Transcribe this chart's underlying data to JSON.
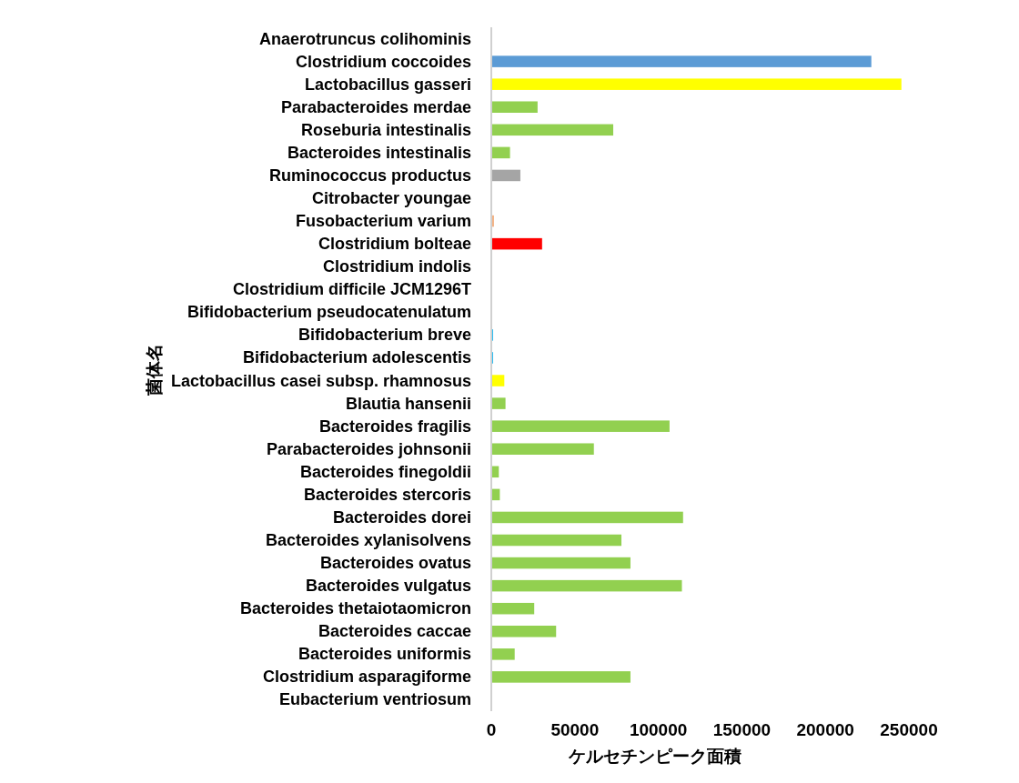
{
  "chart_data": {
    "type": "bar",
    "orientation": "horizontal",
    "xlabel": "ケルセチンピーク面積",
    "ylabel": "菌体名",
    "categories": [
      "Anaerotruncus colihominis",
      "Clostridium coccoides",
      "Lactobacillus gasseri",
      "Parabacteroides merdae",
      "Roseburia intestinalis",
      "Bacteroides intestinalis",
      "Ruminococcus productus",
      "Citrobacter youngae",
      "Fusobacterium varium",
      "Clostridium bolteae",
      "Clostridium indolis",
      "Clostridium difficile JCM1296T",
      "Bifidobacterium pseudocatenulatum",
      "Bifidobacterium breve",
      "Bifidobacterium adolescentis",
      "Lactobacillus casei subsp. rhamnosus",
      "Blautia hansenii",
      "Bacteroides fragilis",
      "Parabacteroides johnsonii",
      "Bacteroides finegoldii",
      "Bacteroides stercoris",
      "Bacteroides dorei",
      "Bacteroides xylanisolvens",
      "Bacteroides ovatus",
      "Bacteroides vulgatus",
      "Bacteroides thetaiotaomicron",
      "Bacteroides caccae",
      "Bacteroides uniformis",
      "Clostridium asparagiforme",
      "Eubacterium ventriosum"
    ],
    "values": [
      0,
      227500,
      245500,
      27700,
      73000,
      11200,
      17400,
      0,
      1600,
      30400,
      0,
      0,
      0,
      1000,
      1000,
      7800,
      8500,
      106700,
      61400,
      4500,
      5100,
      114800,
      77900,
      83300,
      114100,
      25700,
      38800,
      14000,
      83300,
      0
    ],
    "colors": [
      "#92d050",
      "#5b9bd5",
      "#ffff00",
      "#92d050",
      "#92d050",
      "#92d050",
      "#a5a5a5",
      "#92d050",
      "#f4b183",
      "#ff0000",
      "#92d050",
      "#92d050",
      "#92d050",
      "#00b0f0",
      "#00b0f0",
      "#ffff00",
      "#92d050",
      "#92d050",
      "#92d050",
      "#92d050",
      "#92d050",
      "#92d050",
      "#92d050",
      "#92d050",
      "#92d050",
      "#92d050",
      "#92d050",
      "#92d050",
      "#92d050",
      "#92d050"
    ],
    "xlim": [
      0,
      250000
    ],
    "xticks": [
      0,
      50000,
      100000,
      150000,
      200000,
      250000
    ]
  }
}
